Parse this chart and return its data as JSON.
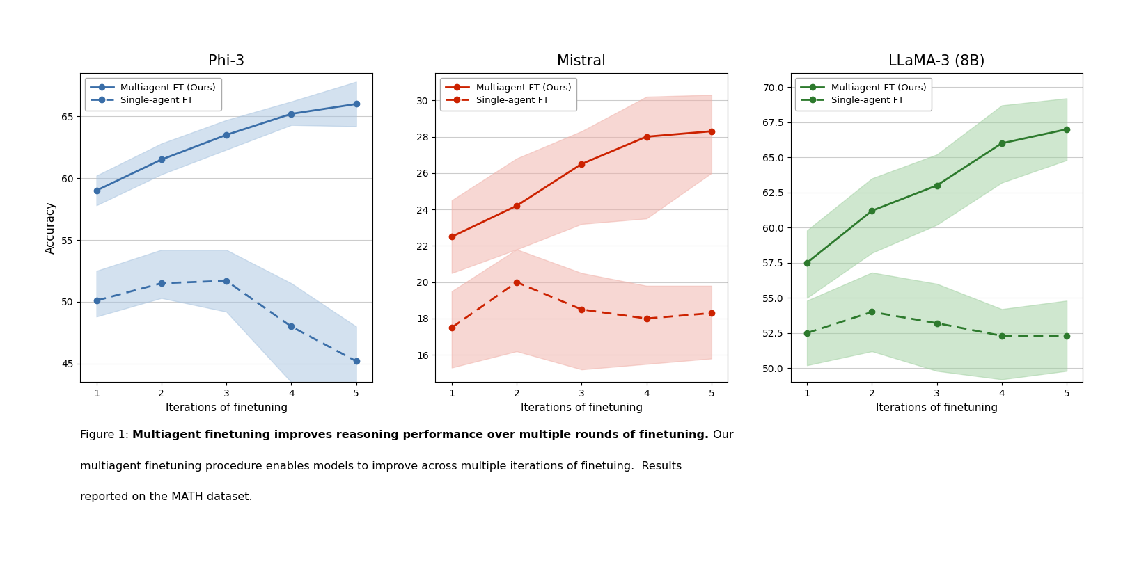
{
  "phi3": {
    "title": "Phi-3",
    "x": [
      1,
      2,
      3,
      4,
      5
    ],
    "multi_y": [
      59.0,
      61.5,
      63.5,
      65.2,
      66.0
    ],
    "multi_lo": [
      57.8,
      60.3,
      62.3,
      64.3,
      64.2
    ],
    "multi_hi": [
      60.2,
      62.8,
      64.7,
      66.2,
      67.8
    ],
    "single_y": [
      50.1,
      51.5,
      51.7,
      48.0,
      45.2
    ],
    "single_lo": [
      48.8,
      50.3,
      49.2,
      43.5,
      40.0
    ],
    "single_hi": [
      52.5,
      54.2,
      54.2,
      51.5,
      48.0
    ],
    "ylim": [
      43.5,
      68.5
    ],
    "yticks": [
      45,
      50,
      55,
      60,
      65
    ],
    "color": "#3a6ea8",
    "fill_color": "#a8c4e0"
  },
  "mistral": {
    "title": "Mistral",
    "x": [
      1,
      2,
      3,
      4,
      5
    ],
    "multi_y": [
      22.5,
      24.2,
      26.5,
      28.0,
      28.3
    ],
    "multi_lo": [
      20.5,
      21.8,
      23.2,
      23.5,
      26.0
    ],
    "multi_hi": [
      24.5,
      26.8,
      28.3,
      30.2,
      30.3
    ],
    "single_y": [
      17.5,
      20.0,
      18.5,
      18.0,
      18.3
    ],
    "single_lo": [
      15.3,
      16.2,
      15.2,
      15.5,
      15.8
    ],
    "single_hi": [
      19.5,
      21.8,
      20.5,
      19.8,
      19.8
    ],
    "ylim": [
      14.5,
      31.5
    ],
    "yticks": [
      16,
      18,
      20,
      22,
      24,
      26,
      28,
      30
    ],
    "color": "#cc2200",
    "fill_color": "#f0b0a8"
  },
  "llama": {
    "title": "LLaMA-3 (8B)",
    "x": [
      1,
      2,
      3,
      4,
      5
    ],
    "multi_y": [
      57.5,
      61.2,
      63.0,
      66.0,
      67.0
    ],
    "multi_lo": [
      55.0,
      58.2,
      60.2,
      63.2,
      64.8
    ],
    "multi_hi": [
      59.8,
      63.5,
      65.2,
      68.7,
      69.2
    ],
    "single_y": [
      52.5,
      54.0,
      53.2,
      52.3,
      52.3
    ],
    "single_lo": [
      50.2,
      51.2,
      49.8,
      49.2,
      49.8
    ],
    "single_hi": [
      54.8,
      56.8,
      56.0,
      54.2,
      54.8
    ],
    "ylim": [
      49.0,
      71.0
    ],
    "yticks": [
      50.0,
      52.5,
      55.0,
      57.5,
      60.0,
      62.5,
      65.0,
      67.5,
      70.0
    ],
    "color": "#2d7a2d",
    "fill_color": "#a0d0a0"
  },
  "ylabel": "Accuracy",
  "xlabel": "Iterations of finetuning",
  "legend_multi": "Multiagent FT (Ours)",
  "legend_single": "Single-agent FT",
  "caption_label": "Figure 1: ",
  "caption_bold": "Multiagent finetuning improves reasoning performance over multiple rounds of finetuning.",
  "caption_rest": " Our",
  "caption_line2": "multiagent finetuning procedure enables models to improve across multiple iterations of finetuing.  Results",
  "caption_line3": "reported on the MATH dataset."
}
